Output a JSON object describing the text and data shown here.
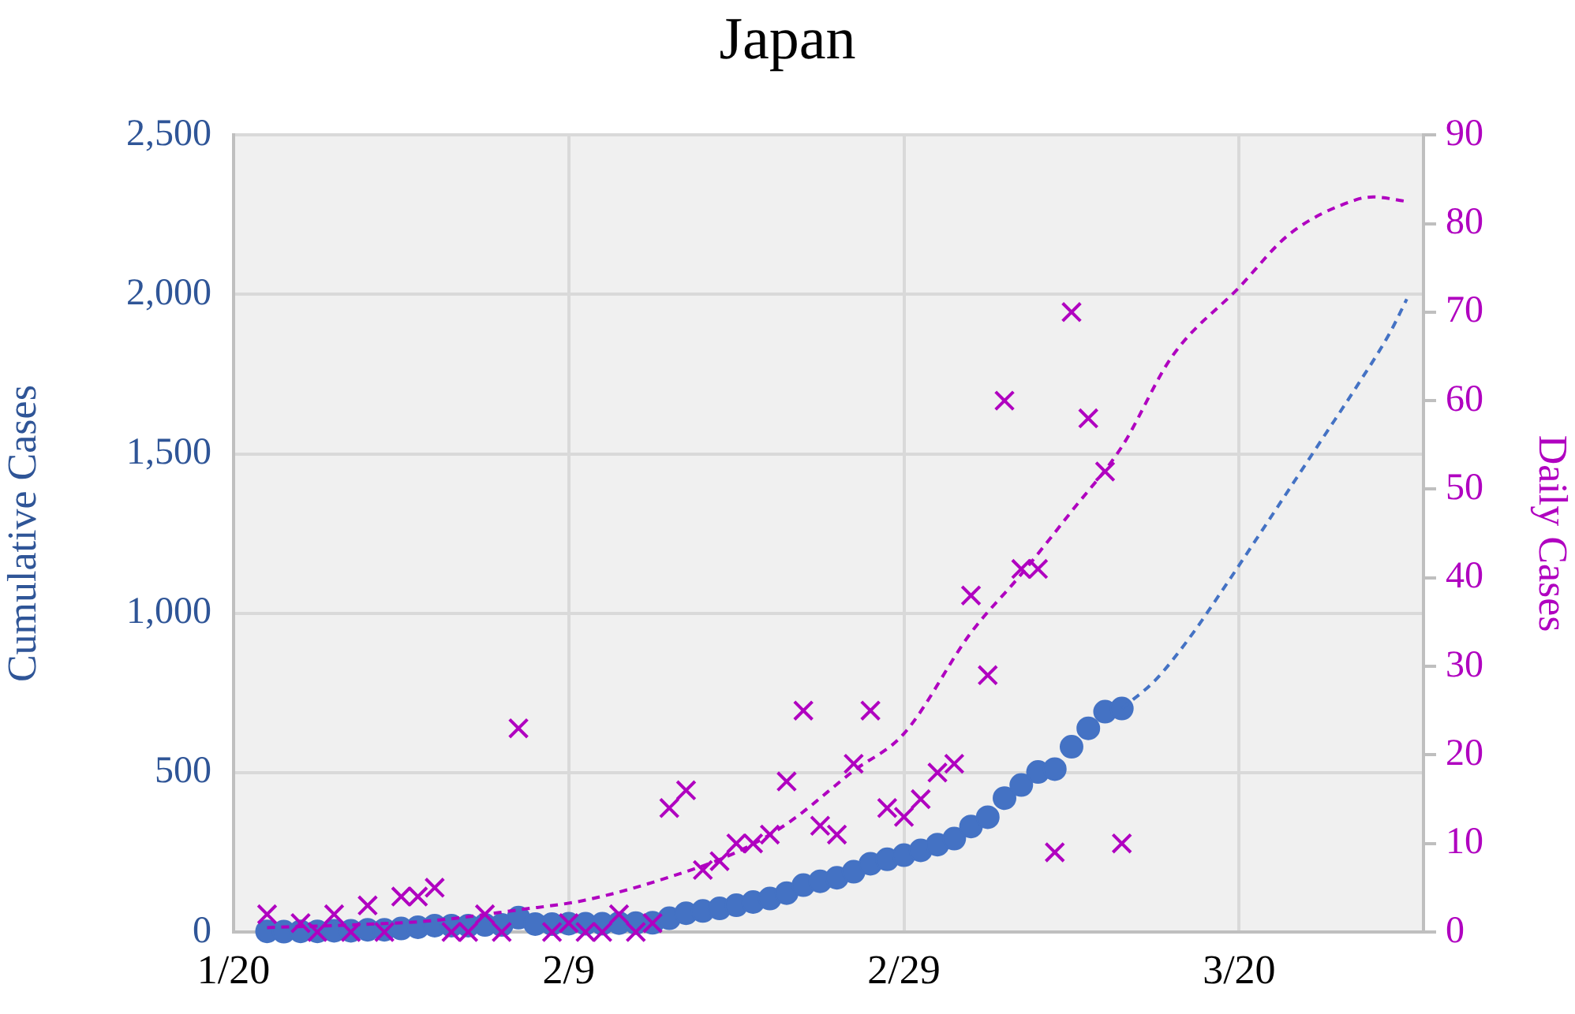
{
  "chart_data": {
    "type": "scatter",
    "title": "Japan",
    "ylabel": "Cumulative Cases",
    "y2label": "Daily Cases",
    "xlim": [
      "--01-20",
      "--03-31"
    ],
    "xticks": [
      {
        "value": "--01-20",
        "label": "1/20"
      },
      {
        "value": "--02-09",
        "label": "2/9"
      },
      {
        "value": "--02-29",
        "label": "2/29"
      },
      {
        "value": "--03-20",
        "label": "3/20"
      }
    ],
    "ylim": [
      0,
      2500
    ],
    "yticks": [
      0,
      {
        "value": 500,
        "label": "500"
      },
      {
        "value": 1000,
        "label": "1,000"
      },
      {
        "value": 1500,
        "label": "1,500"
      },
      {
        "value": 2000,
        "label": "2,000"
      },
      {
        "value": 2500,
        "label": "2,500"
      }
    ],
    "y2lim": [
      0,
      90
    ],
    "y2ticks": [
      0,
      10,
      20,
      30,
      40,
      50,
      60,
      70,
      80,
      90
    ],
    "grid": true,
    "series": [
      {
        "type": "scatter",
        "marker": "circle",
        "color": "#4472c4",
        "x": [
          "--01-22",
          "--01-23",
          "--01-24",
          "--01-25",
          "--01-26",
          "--01-27",
          "--01-28",
          "--01-29",
          "--01-30",
          "--01-31",
          "--02-01",
          "--02-02",
          "--02-03",
          "--02-04",
          "--02-05",
          "--02-06",
          "--02-07",
          "--02-08",
          "--02-09",
          "--02-10",
          "--02-11",
          "--02-12",
          "--02-13",
          "--02-14",
          "--02-15",
          "--02-16",
          "--02-17",
          "--02-18",
          "--02-19",
          "--02-20",
          "--02-21",
          "--02-22",
          "--02-23",
          "--02-24",
          "--02-25",
          "--02-26",
          "--02-27",
          "--02-28",
          "--02-29",
          "--03-01",
          "--03-02",
          "--03-03",
          "--03-04",
          "--03-05",
          "--03-06",
          "--03-07",
          "--03-08",
          "--03-09",
          "--03-10",
          "--03-11",
          "--03-12",
          "--03-13"
        ],
        "values": [
          2,
          1,
          2,
          2,
          4,
          4,
          7,
          7,
          11,
          15,
          20,
          20,
          20,
          22,
          22,
          45,
          25,
          25,
          26,
          26,
          26,
          28,
          28,
          29,
          43,
          59,
          66,
          74,
          84,
          94,
          105,
          122,
          147,
          159,
          170,
          189,
          214,
          228,
          241,
          256,
          274,
          293,
          331,
          360,
          420,
          461,
          502,
          511,
          581,
          639,
          691,
          701
        ]
      },
      {
        "type": "scatter",
        "marker": "cross",
        "axis": "y2",
        "color": "#b000c0",
        "x": [
          "--01-22",
          "--01-23",
          "--01-24",
          "--01-25",
          "--01-26",
          "--01-27",
          "--01-28",
          "--01-29",
          "--01-30",
          "--01-31",
          "--02-01",
          "--02-02",
          "--02-03",
          "--02-04",
          "--02-05",
          "--02-06",
          "--02-07",
          "--02-08",
          "--02-09",
          "--02-10",
          "--02-11",
          "--02-12",
          "--02-13",
          "--02-14",
          "--02-15",
          "--02-16",
          "--02-17",
          "--02-18",
          "--02-19",
          "--02-20",
          "--02-21",
          "--02-22",
          "--02-23",
          "--02-24",
          "--02-25",
          "--02-26",
          "--02-27",
          "--02-28",
          "--02-29",
          "--03-01",
          "--03-02",
          "--03-03",
          "--03-04",
          "--03-05",
          "--03-06",
          "--03-07",
          "--03-08",
          "--03-09",
          "--03-10",
          "--03-11",
          "--03-12",
          "--03-13"
        ],
        "values": [
          2,
          null,
          1,
          0,
          2,
          0,
          3,
          0,
          4,
          4,
          5,
          0,
          0,
          2,
          0,
          23,
          null,
          0,
          1,
          0,
          0,
          2,
          0,
          1,
          14,
          16,
          7,
          8,
          10,
          10,
          11,
          17,
          25,
          12,
          11,
          19,
          25,
          14,
          13,
          15,
          18,
          19,
          38,
          29,
          60,
          41,
          41,
          9,
          70,
          58,
          52,
          10
        ]
      },
      {
        "type": "line",
        "marker": "none",
        "line_style": "dashed",
        "color": "#4472c4",
        "x": [
          "--03-13",
          "--03-15",
          "--03-17",
          "--03-19",
          "--03-21",
          "--03-23",
          "--03-25",
          "--03-27",
          "--03-29",
          "--03-30"
        ],
        "values": [
          701,
          790,
          920,
          1072,
          1230,
          1390,
          1550,
          1710,
          1880,
          1985
        ]
      },
      {
        "type": "line",
        "marker": "none",
        "line_style": "dashed",
        "axis": "y2",
        "color": "#b000c0",
        "x": [
          "--01-22",
          "--01-27",
          "--02-01",
          "--02-06",
          "--02-10",
          "--02-15",
          "--02-19",
          "--02-22",
          "--02-26",
          "--02-29",
          "--03-04",
          "--03-07",
          "--03-10",
          "--03-13",
          "--03-16",
          "--03-20",
          "--03-23",
          "--03-27",
          "--03-28",
          "--03-30"
        ],
        "values": [
          0.5,
          0.8,
          1.3,
          2.5,
          3.6,
          6.2,
          9,
          12.2,
          18.2,
          22.4,
          33.8,
          40.4,
          47.5,
          54.8,
          65,
          72.8,
          78.8,
          82.7,
          83,
          82.5
        ]
      }
    ]
  }
}
